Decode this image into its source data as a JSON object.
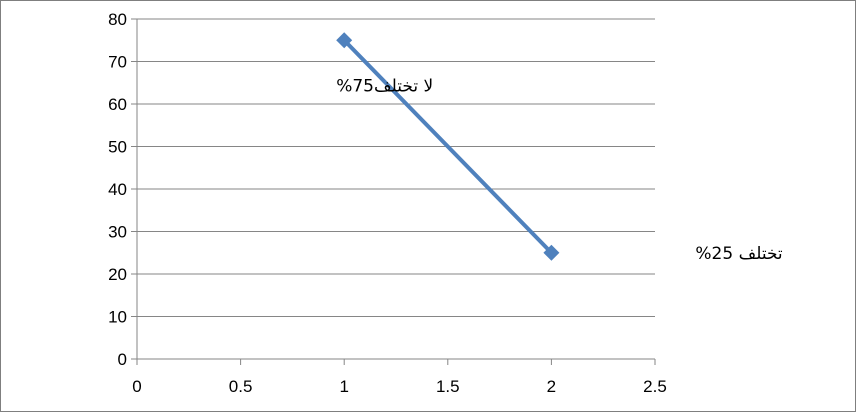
{
  "chart_data": {
    "type": "scatter",
    "title": "",
    "xlabel": "",
    "ylabel": "",
    "xlim": [
      0,
      2.5
    ],
    "ylim": [
      0,
      80
    ],
    "x_ticks": [
      "0",
      "0.5",
      "1",
      "1.5",
      "2",
      "2.5"
    ],
    "y_ticks": [
      "0",
      "10",
      "20",
      "30",
      "40",
      "50",
      "60",
      "70",
      "80"
    ],
    "grid": "horizontal",
    "legend": "none",
    "series": [
      {
        "color": "#4f81bd",
        "marker": "diamond",
        "connected": true,
        "points": [
          {
            "x": 1,
            "y": 75
          },
          {
            "x": 2,
            "y": 25
          }
        ]
      }
    ],
    "annotations": [
      {
        "text": "لا تختلف75%",
        "x": 1,
        "y": 75,
        "anchor": "left-below"
      },
      {
        "text": "تختلف 25%",
        "x": 2,
        "y": 25,
        "anchor": "right"
      }
    ]
  }
}
